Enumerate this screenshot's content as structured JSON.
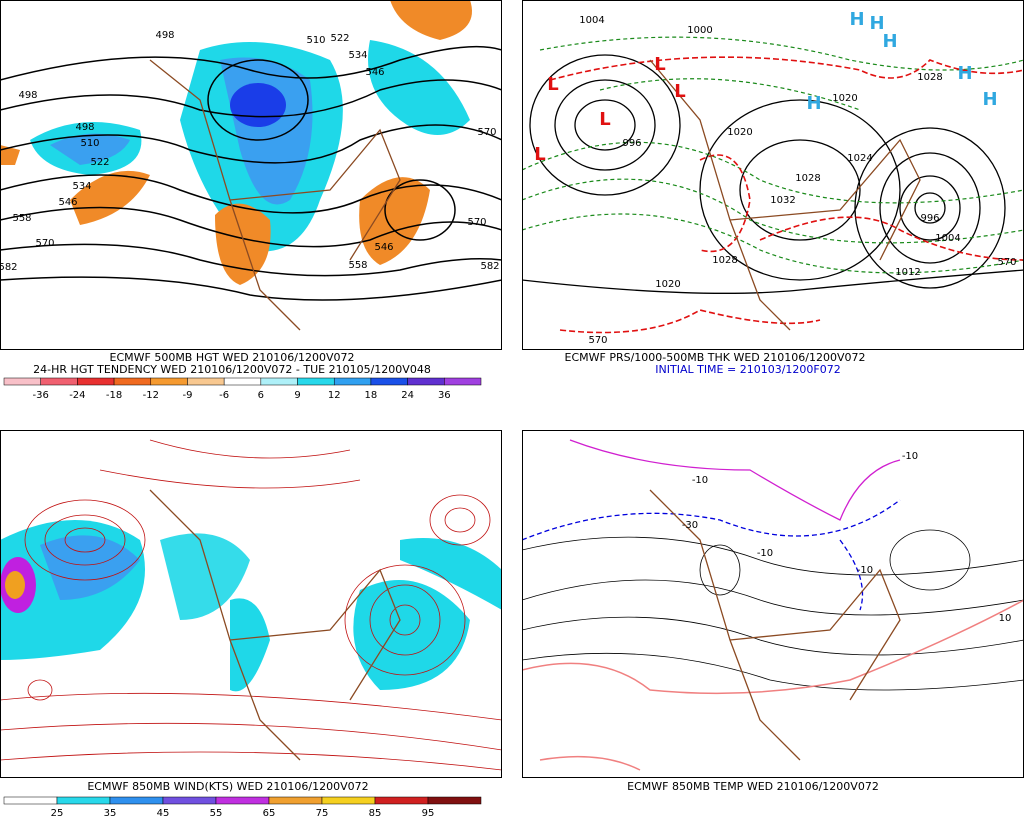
{
  "panels": [
    {
      "caption": [
        "ECMWF 500MB HGT WED 210106/1200V072",
        "24-HR HGT TENDENCY WED 210106/1200V072 - TUE 210105/1200V048"
      ],
      "colorbar": [
        "-36",
        "-24",
        "-18",
        "-12",
        "-9",
        "-6",
        "6",
        "9",
        "12",
        "18",
        "24",
        "36"
      ],
      "labels": [
        "498",
        "510",
        "522",
        "534",
        "546",
        "498",
        "498",
        "510",
        "522",
        "534",
        "546",
        "558",
        "570",
        "582",
        "570",
        "570",
        "546",
        "558",
        "582"
      ]
    },
    {
      "caption": [
        "ECMWF PRS/1000-500MB THK WED 210106/1200V072",
        "INITIAL TIME = 210103/1200F072"
      ],
      "labels": [
        "1004",
        "1000",
        "996",
        "1020",
        "1028",
        "1020",
        "1024",
        "1028",
        "1032",
        "1028",
        "1020",
        "1004",
        "1012",
        "996",
        "570",
        "570"
      ],
      "highs": [
        "H",
        "H",
        "H",
        "H",
        "H",
        "H"
      ],
      "lows": [
        "L",
        "L",
        "L",
        "L",
        "L"
      ]
    },
    {
      "caption": [
        "ECMWF 850MB WIND(KTS) WED 210106/1200V072"
      ],
      "colorbar": [
        "25",
        "35",
        "45",
        "55",
        "65",
        "75",
        "85",
        "95"
      ]
    },
    {
      "caption": [
        "ECMWF 850MB TEMP WED 210106/1200V072"
      ],
      "labels": [
        "-10",
        "-30",
        "-10",
        "-10",
        "10",
        "-10"
      ]
    }
  ]
}
